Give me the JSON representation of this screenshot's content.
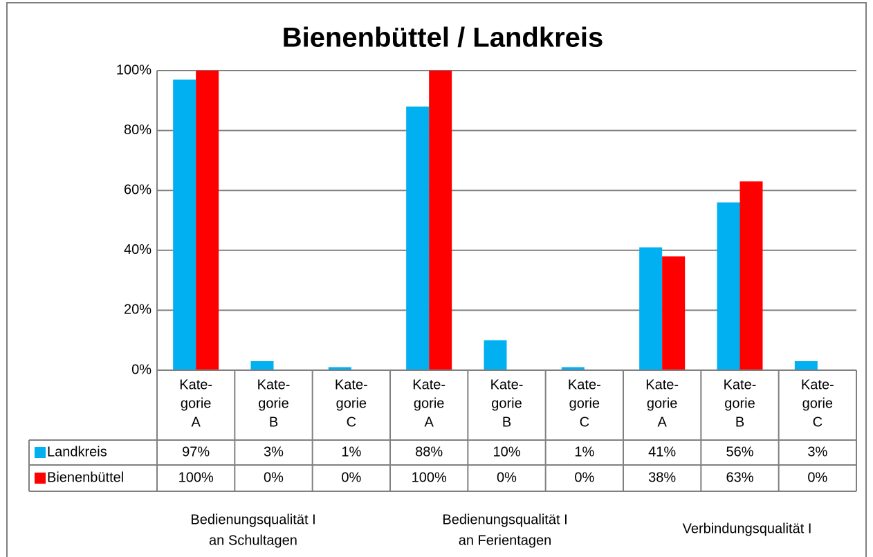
{
  "chart_data": {
    "type": "bar",
    "title": "Bienenbüttel / Landkreis",
    "categories": [
      [
        "Kate-",
        "gorie",
        "A"
      ],
      [
        "Kate-",
        "gorie",
        "B"
      ],
      [
        "Kate-",
        "gorie",
        "C"
      ],
      [
        "Kate-",
        "gorie",
        "A"
      ],
      [
        "Kate-",
        "gorie",
        "B"
      ],
      [
        "Kate-",
        "gorie",
        "C"
      ],
      [
        "Kate-",
        "gorie",
        "A"
      ],
      [
        "Kate-",
        "gorie",
        "B"
      ],
      [
        "Kate-",
        "gorie",
        "C"
      ]
    ],
    "groups": [
      [
        "Bedienungsqualität I",
        "an Schultagen"
      ],
      [
        "Bedienungsqualität I",
        "an Ferientagen"
      ],
      [
        "Verbindungsqualität I"
      ]
    ],
    "series": [
      {
        "name": "Landkreis",
        "color": "#00b0f0",
        "values": [
          97,
          3,
          1,
          88,
          10,
          1,
          41,
          56,
          3
        ],
        "value_labels": [
          "97%",
          "3%",
          "1%",
          "88%",
          "10%",
          "1%",
          "41%",
          "56%",
          "3%"
        ]
      },
      {
        "name": "Bienenbüttel",
        "color": "#ff0000",
        "values": [
          100,
          0,
          0,
          100,
          0,
          0,
          38,
          63,
          0
        ],
        "value_labels": [
          "100%",
          "0%",
          "0%",
          "100%",
          "0%",
          "0%",
          "38%",
          "63%",
          "0%"
        ]
      }
    ],
    "ylim": [
      0,
      100
    ],
    "yticks": [
      {
        "value": 0,
        "label": "0%"
      },
      {
        "value": 20,
        "label": "20%"
      },
      {
        "value": 40,
        "label": "40%"
      },
      {
        "value": 60,
        "label": "60%"
      },
      {
        "value": 80,
        "label": "80%"
      },
      {
        "value": 100,
        "label": "100%"
      }
    ],
    "grid": true
  }
}
